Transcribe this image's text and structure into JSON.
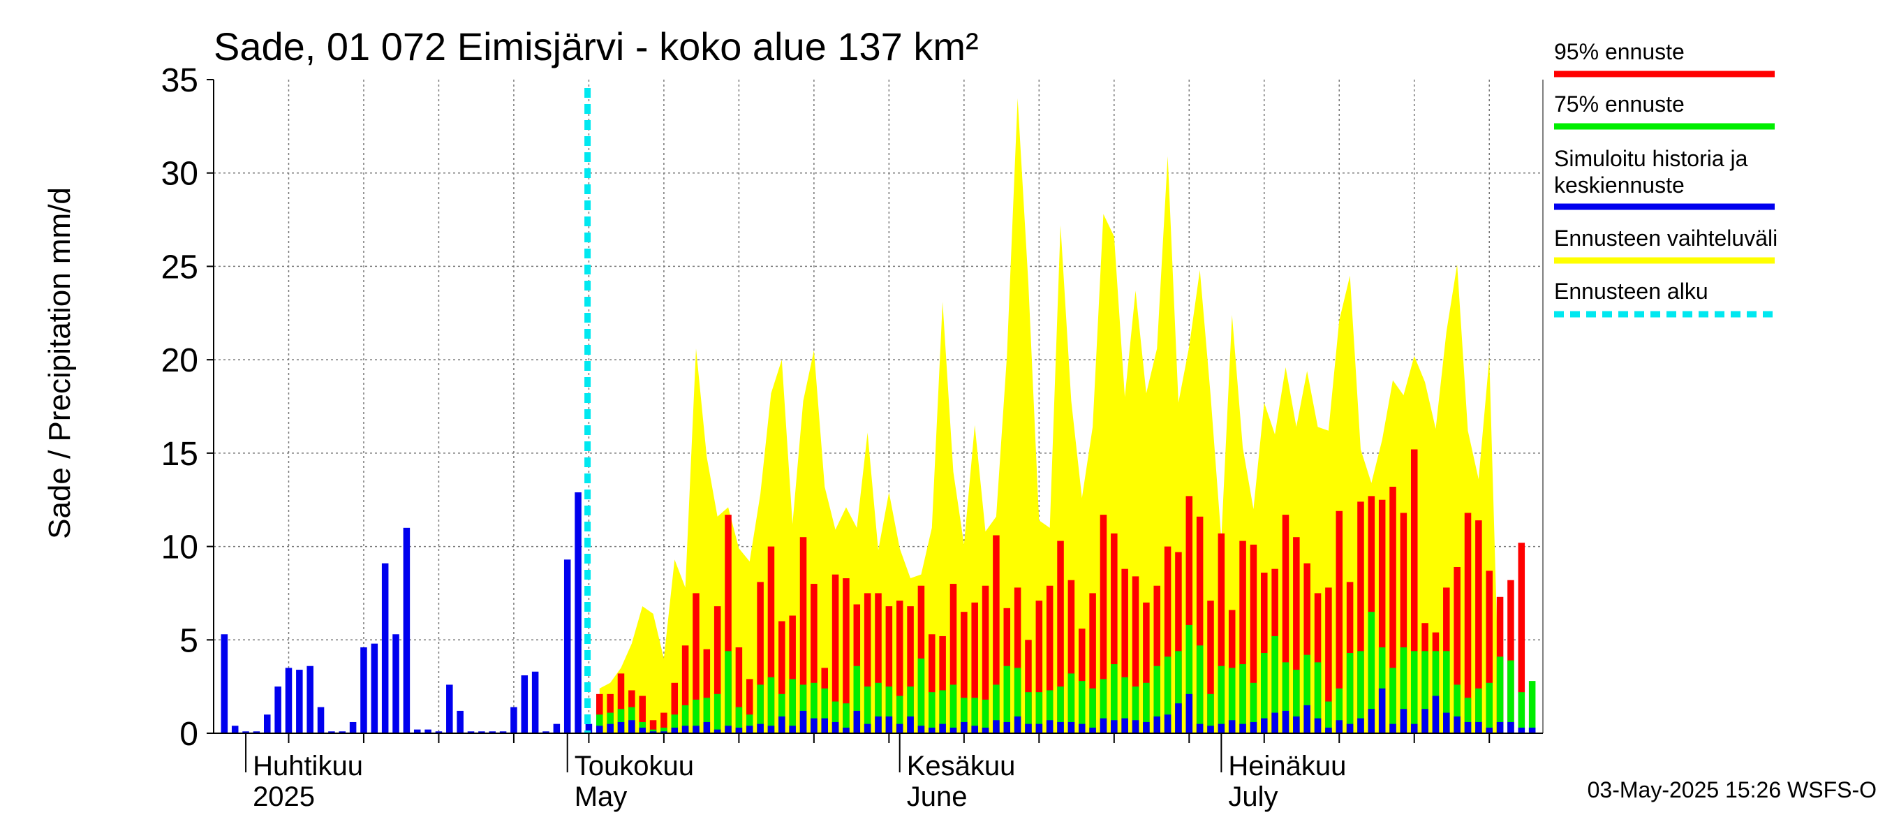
{
  "chart_data": {
    "type": "bar",
    "title": "Sade, 01 072 Eimisjärvi - koko alue 137 km²",
    "ylabel": "Sade / Precipitation   mm/d",
    "ylim": [
      0,
      35
    ],
    "yticks": [
      "0",
      "5",
      "10",
      "15",
      "20",
      "25",
      "30",
      "35"
    ],
    "grid": true,
    "legend_placement": "right",
    "x_start": "2025-03-29",
    "x_end": "2025-07-31",
    "forecast_start": "2025-05-03",
    "months": [
      {
        "fi": "Huhtikuu",
        "en": "2025",
        "date": "2025-04-01"
      },
      {
        "fi": "Toukokuu",
        "en": "May",
        "date": "2025-05-01"
      },
      {
        "fi": "Kesäkuu",
        "en": "June",
        "date": "2025-06-01"
      },
      {
        "fi": "Heinäkuu",
        "en": "July",
        "date": "2025-07-01"
      }
    ],
    "history": {
      "name": "Simuloitu historia ja keskiennuste",
      "color": "#0000ee",
      "dates": [
        "2025-03-30",
        "2025-03-31",
        "2025-04-01",
        "2025-04-02",
        "2025-04-03",
        "2025-04-04",
        "2025-04-05",
        "2025-04-06",
        "2025-04-07",
        "2025-04-08",
        "2025-04-09",
        "2025-04-10",
        "2025-04-11",
        "2025-04-12",
        "2025-04-13",
        "2025-04-14",
        "2025-04-15",
        "2025-04-16",
        "2025-04-17",
        "2025-04-18",
        "2025-04-19",
        "2025-04-20",
        "2025-04-21",
        "2025-04-22",
        "2025-04-23",
        "2025-04-24",
        "2025-04-25",
        "2025-04-26",
        "2025-04-27",
        "2025-04-28",
        "2025-04-29",
        "2025-04-30",
        "2025-05-01",
        "2025-05-02",
        "2025-05-03"
      ],
      "values": [
        5.3,
        0.4,
        0.1,
        0.1,
        1.0,
        2.5,
        3.5,
        3.4,
        3.6,
        1.4,
        0.1,
        0.1,
        0.6,
        4.6,
        4.8,
        9.1,
        5.3,
        11.0,
        0.2,
        0.2,
        0.1,
        2.6,
        1.2,
        0.1,
        0.1,
        0.1,
        0.1,
        1.4,
        3.1,
        3.3,
        0.1,
        0.5,
        9.3,
        12.9,
        0.5
      ]
    },
    "forecast": {
      "dates": [
        "2025-05-04",
        "2025-05-05",
        "2025-05-06",
        "2025-05-07",
        "2025-05-08",
        "2025-05-09",
        "2025-05-10",
        "2025-05-11",
        "2025-05-12",
        "2025-05-13",
        "2025-05-14",
        "2025-05-15",
        "2025-05-16",
        "2025-05-17",
        "2025-05-18",
        "2025-05-19",
        "2025-05-20",
        "2025-05-21",
        "2025-05-22",
        "2025-05-23",
        "2025-05-24",
        "2025-05-25",
        "2025-05-26",
        "2025-05-27",
        "2025-05-28",
        "2025-05-29",
        "2025-05-30",
        "2025-05-31",
        "2025-06-01",
        "2025-06-02",
        "2025-06-03",
        "2025-06-04",
        "2025-06-05",
        "2025-06-06",
        "2025-06-07",
        "2025-06-08",
        "2025-06-09",
        "2025-06-10",
        "2025-06-11",
        "2025-06-12",
        "2025-06-13",
        "2025-06-14",
        "2025-06-15",
        "2025-06-16",
        "2025-06-17",
        "2025-06-18",
        "2025-06-19",
        "2025-06-20",
        "2025-06-21",
        "2025-06-22",
        "2025-06-23",
        "2025-06-24",
        "2025-06-25",
        "2025-06-26",
        "2025-06-27",
        "2025-06-28",
        "2025-06-29",
        "2025-06-30",
        "2025-07-01",
        "2025-07-02",
        "2025-07-03",
        "2025-07-04",
        "2025-07-05",
        "2025-07-06",
        "2025-07-07",
        "2025-07-08",
        "2025-07-09",
        "2025-07-10",
        "2025-07-11",
        "2025-07-12",
        "2025-07-13",
        "2025-07-14",
        "2025-07-15",
        "2025-07-16",
        "2025-07-17",
        "2025-07-18",
        "2025-07-19",
        "2025-07-20",
        "2025-07-21",
        "2025-07-22",
        "2025-07-23",
        "2025-07-24",
        "2025-07-25",
        "2025-07-26",
        "2025-07-27",
        "2025-07-28",
        "2025-07-29",
        "2025-07-30"
      ],
      "p95": [
        2.1,
        2.1,
        3.2,
        2.3,
        2.0,
        0.7,
        1.1,
        2.7,
        4.7,
        7.5,
        4.5,
        6.8,
        11.7,
        4.6,
        2.9,
        8.1,
        10.0,
        6.0,
        6.3,
        10.5,
        8.0,
        3.5,
        8.5,
        8.3,
        6.9,
        7.5,
        7.5,
        6.8,
        7.1,
        6.8,
        7.9,
        5.3,
        5.2,
        8.0,
        6.5,
        7.0,
        7.9,
        10.6,
        6.7,
        7.8,
        5.0,
        7.1,
        7.9,
        10.3,
        8.2,
        5.6,
        7.5,
        11.7,
        10.7,
        8.8,
        8.4,
        7.0,
        7.9,
        10.0,
        9.7,
        12.7,
        11.6,
        7.1,
        10.7,
        6.6,
        10.3,
        10.1,
        8.6,
        8.8,
        11.7,
        10.5,
        9.1,
        7.5,
        7.8,
        11.9,
        8.1,
        12.4,
        12.7,
        12.5,
        13.2,
        11.8,
        15.2,
        5.9,
        5.4,
        7.8,
        8.9,
        11.8,
        11.4,
        8.7,
        7.3,
        8.2,
        10.2,
        0
      ],
      "p75": [
        1.0,
        1.1,
        1.3,
        1.4,
        0.6,
        0.2,
        0.3,
        1.0,
        1.5,
        1.8,
        1.9,
        2.1,
        4.4,
        1.4,
        1.0,
        2.6,
        3.0,
        2.1,
        2.9,
        2.6,
        2.7,
        2.4,
        1.7,
        1.6,
        3.6,
        2.5,
        2.7,
        2.5,
        2.0,
        2.5,
        4.0,
        2.2,
        2.3,
        2.6,
        1.9,
        1.9,
        1.8,
        2.6,
        3.6,
        3.5,
        2.2,
        2.2,
        2.3,
        2.5,
        3.2,
        2.8,
        2.4,
        2.9,
        3.7,
        3.0,
        2.5,
        2.7,
        3.6,
        4.1,
        4.4,
        5.8,
        4.7,
        2.1,
        3.6,
        3.5,
        3.7,
        2.7,
        4.3,
        5.2,
        3.8,
        3.4,
        4.2,
        3.8,
        1.7,
        2.4,
        4.3,
        4.4,
        6.5,
        4.6,
        3.5,
        4.6,
        4.4,
        4.4,
        4.4,
        4.4,
        2.6,
        1.9,
        2.4,
        2.7,
        4.1,
        3.9,
        2.2,
        2.8
      ],
      "mean": [
        0.4,
        0.5,
        0.6,
        0.7,
        0.3,
        0.1,
        0.1,
        0.3,
        0.4,
        0.4,
        0.6,
        0.2,
        0.4,
        0.3,
        0.4,
        0.5,
        0.4,
        0.9,
        0.4,
        1.2,
        0.8,
        0.8,
        0.6,
        0.3,
        1.2,
        0.5,
        0.9,
        0.9,
        0.5,
        0.9,
        0.4,
        0.3,
        0.5,
        0.3,
        0.6,
        0.4,
        0.3,
        0.7,
        0.6,
        0.9,
        0.5,
        0.5,
        0.7,
        0.6,
        0.6,
        0.5,
        0.3,
        0.8,
        0.7,
        0.8,
        0.7,
        0.6,
        0.9,
        1.0,
        1.6,
        2.1,
        0.5,
        0.4,
        0.5,
        0.7,
        0.5,
        0.6,
        0.8,
        1.1,
        1.2,
        0.9,
        1.5,
        0.8,
        0.3,
        0.7,
        0.5,
        0.8,
        1.3,
        2.4,
        0.5,
        1.3,
        0.5,
        1.3,
        2.0,
        1.1,
        0.9,
        0.6,
        0.6,
        0.3,
        0.6,
        0.6,
        0.3,
        0.3
      ],
      "max": [
        2.4,
        2.7,
        3.5,
        4.8,
        6.8,
        6.4,
        4.0,
        9.3,
        7.8,
        20.6,
        14.8,
        11.6,
        12.1,
        9.9,
        9.2,
        12.8,
        18.2,
        20.0,
        11.2,
        17.8,
        20.5,
        13.2,
        10.9,
        12.1,
        11.0,
        16.1,
        9.8,
        12.9,
        9.9,
        8.3,
        8.5,
        11.0,
        23.1,
        14.0,
        10.1,
        16.5,
        10.8,
        11.6,
        20.2,
        34.0,
        24.1,
        11.4,
        11.0,
        27.2,
        17.8,
        12.6,
        16.4,
        27.8,
        26.6,
        18.0,
        23.7,
        18.2,
        20.6,
        30.9,
        17.7,
        20.7,
        24.8,
        18.1,
        10.4,
        22.4,
        15.3,
        12.0,
        17.7,
        16.0,
        19.6,
        16.4,
        19.4,
        16.4,
        16.2,
        22.1,
        24.5,
        15.2,
        13.4,
        15.7,
        18.9,
        18.1,
        20.2,
        18.8,
        16.3,
        21.5,
        25.1,
        16.2,
        13.6,
        20.1,
        0,
        0,
        0,
        0
      ]
    },
    "legend": [
      {
        "label": "95% ennuste",
        "color": "#ff0000",
        "style": "solid"
      },
      {
        "label": "75% ennuste",
        "color": "#00ee00",
        "style": "solid"
      },
      {
        "label_line1": "Simuloitu historia ja",
        "label_line2": "keskiennuste",
        "color": "#0000ee",
        "style": "solid"
      },
      {
        "label": "Ennusteen vaihteluväli",
        "color": "#ffff00",
        "style": "solid"
      },
      {
        "label": "Ennusteen alku",
        "color": "#00e8f0",
        "style": "dashed"
      }
    ],
    "colors": {
      "p95": "#ff0000",
      "p75": "#00ee00",
      "mean": "#0000ee",
      "range": "#ffff00",
      "forecast_start": "#00e8f0"
    },
    "timestamp": "03-May-2025 15:26 WSFS-O"
  }
}
